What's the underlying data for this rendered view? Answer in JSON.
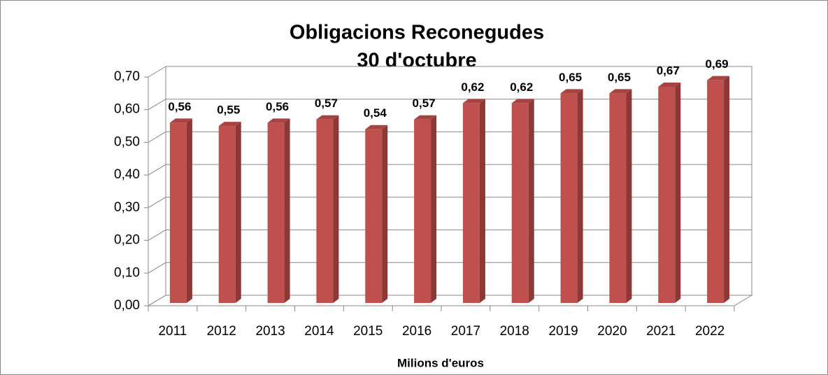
{
  "chart_data": {
    "type": "bar3d",
    "title": "Obligacions Reconegudes",
    "subtitle": "30 d'octubre",
    "x_label": "Milions d'euros",
    "categories": [
      "2011",
      "2012",
      "2013",
      "2014",
      "2015",
      "2016",
      "2017",
      "2018",
      "2019",
      "2020",
      "2021",
      "2022"
    ],
    "values": [
      0.56,
      0.55,
      0.56,
      0.57,
      0.54,
      0.57,
      0.62,
      0.62,
      0.65,
      0.65,
      0.67,
      0.69
    ],
    "value_labels": [
      "0,56",
      "0,55",
      "0,56",
      "0,57",
      "0,54",
      "0,57",
      "0,62",
      "0,62",
      "0,65",
      "0,65",
      "0,67",
      "0,69"
    ],
    "color": "#c0504d",
    "ylim": [
      0,
      0.7
    ],
    "yticks": [
      {
        "value": 0,
        "label": "0,00"
      },
      {
        "value": 0.1,
        "label": "0,10"
      },
      {
        "value": 0.2,
        "label": "0,20"
      },
      {
        "value": 0.3,
        "label": "0,30"
      },
      {
        "value": 0.4,
        "label": "0,40"
      },
      {
        "value": 0.5,
        "label": "0,50"
      },
      {
        "value": 0.6,
        "label": "0,60"
      },
      {
        "value": 0.7,
        "label": "0,70"
      }
    ],
    "grid": true
  }
}
